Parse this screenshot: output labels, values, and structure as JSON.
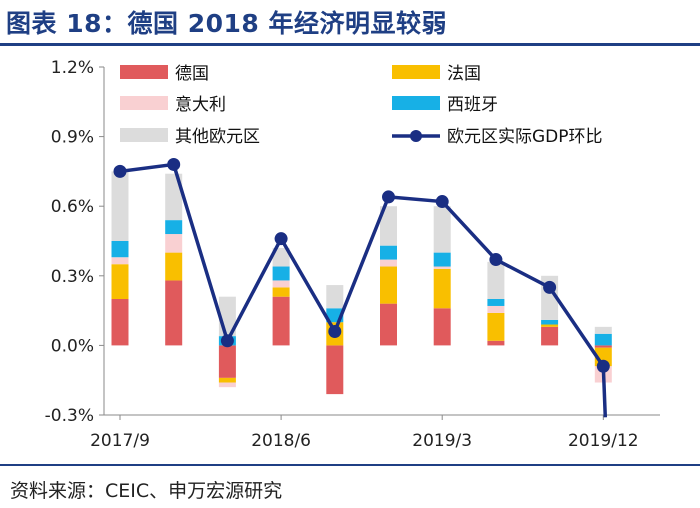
{
  "title": "图表 18：德国 2018 年经济明显较弱",
  "source": "资料来源：CEIC、申万宏源研究",
  "colors": {
    "germany": "#e05a5c",
    "france": "#f9bf00",
    "italy": "#f9d0d2",
    "spain": "#17b0e6",
    "other": "#dcdcdc",
    "line": "#1a2e83",
    "title": "#1f3f84"
  },
  "chart_data": {
    "type": "bar",
    "stacked": true,
    "title": "德国 2018 年经济明显较弱",
    "xlabel": "",
    "ylabel": "",
    "ylim": [
      -0.3,
      1.2
    ],
    "yticks": [
      "-0.3%",
      "0.0%",
      "0.3%",
      "0.6%",
      "0.9%",
      "1.2%"
    ],
    "ytick_values": [
      -0.3,
      0.0,
      0.3,
      0.6,
      0.9,
      1.2
    ],
    "categories": [
      "2017Q3",
      "2017Q4",
      "2018Q1",
      "2018Q2",
      "2018Q3",
      "2018Q4",
      "2019Q1",
      "2019Q2",
      "2019Q3",
      "2019Q4"
    ],
    "xtick_labels": [
      "2017/9",
      "2018/6",
      "2019/3",
      "2019/12"
    ],
    "xtick_category_index": [
      0,
      3,
      6,
      9
    ],
    "legend": {
      "germany": "德国",
      "france": "法国",
      "italy": "意大利",
      "spain": "西班牙",
      "other": "其他欧元区",
      "line": "欧元区实际GDP环比"
    },
    "series": [
      {
        "key": "germany",
        "name": "德国",
        "values": [
          0.2,
          0.28,
          -0.14,
          0.21,
          -0.21,
          0.18,
          0.16,
          0.02,
          0.08,
          -0.01
        ]
      },
      {
        "key": "france",
        "name": "法国",
        "values": [
          0.15,
          0.12,
          -0.02,
          0.04,
          0.1,
          0.16,
          0.17,
          0.12,
          0.01,
          -0.08
        ]
      },
      {
        "key": "italy",
        "name": "意大利",
        "values": [
          0.03,
          0.08,
          -0.02,
          0.03,
          0.0,
          0.03,
          0.01,
          0.03,
          0.0,
          -0.07
        ]
      },
      {
        "key": "spain",
        "name": "西班牙",
        "values": [
          0.07,
          0.06,
          0.04,
          0.06,
          0.06,
          0.06,
          0.06,
          0.03,
          0.02,
          0.05
        ]
      },
      {
        "key": "other",
        "name": "其他欧元区",
        "values": [
          0.3,
          0.2,
          0.17,
          0.08,
          0.1,
          0.17,
          0.2,
          0.16,
          0.19,
          0.03
        ]
      }
    ],
    "line": {
      "name": "欧元区实际GDP环比",
      "values": [
        0.75,
        0.78,
        0.02,
        0.46,
        0.06,
        0.64,
        0.62,
        0.37,
        0.25,
        -0.09
      ],
      "tail_end": -0.31
    }
  }
}
